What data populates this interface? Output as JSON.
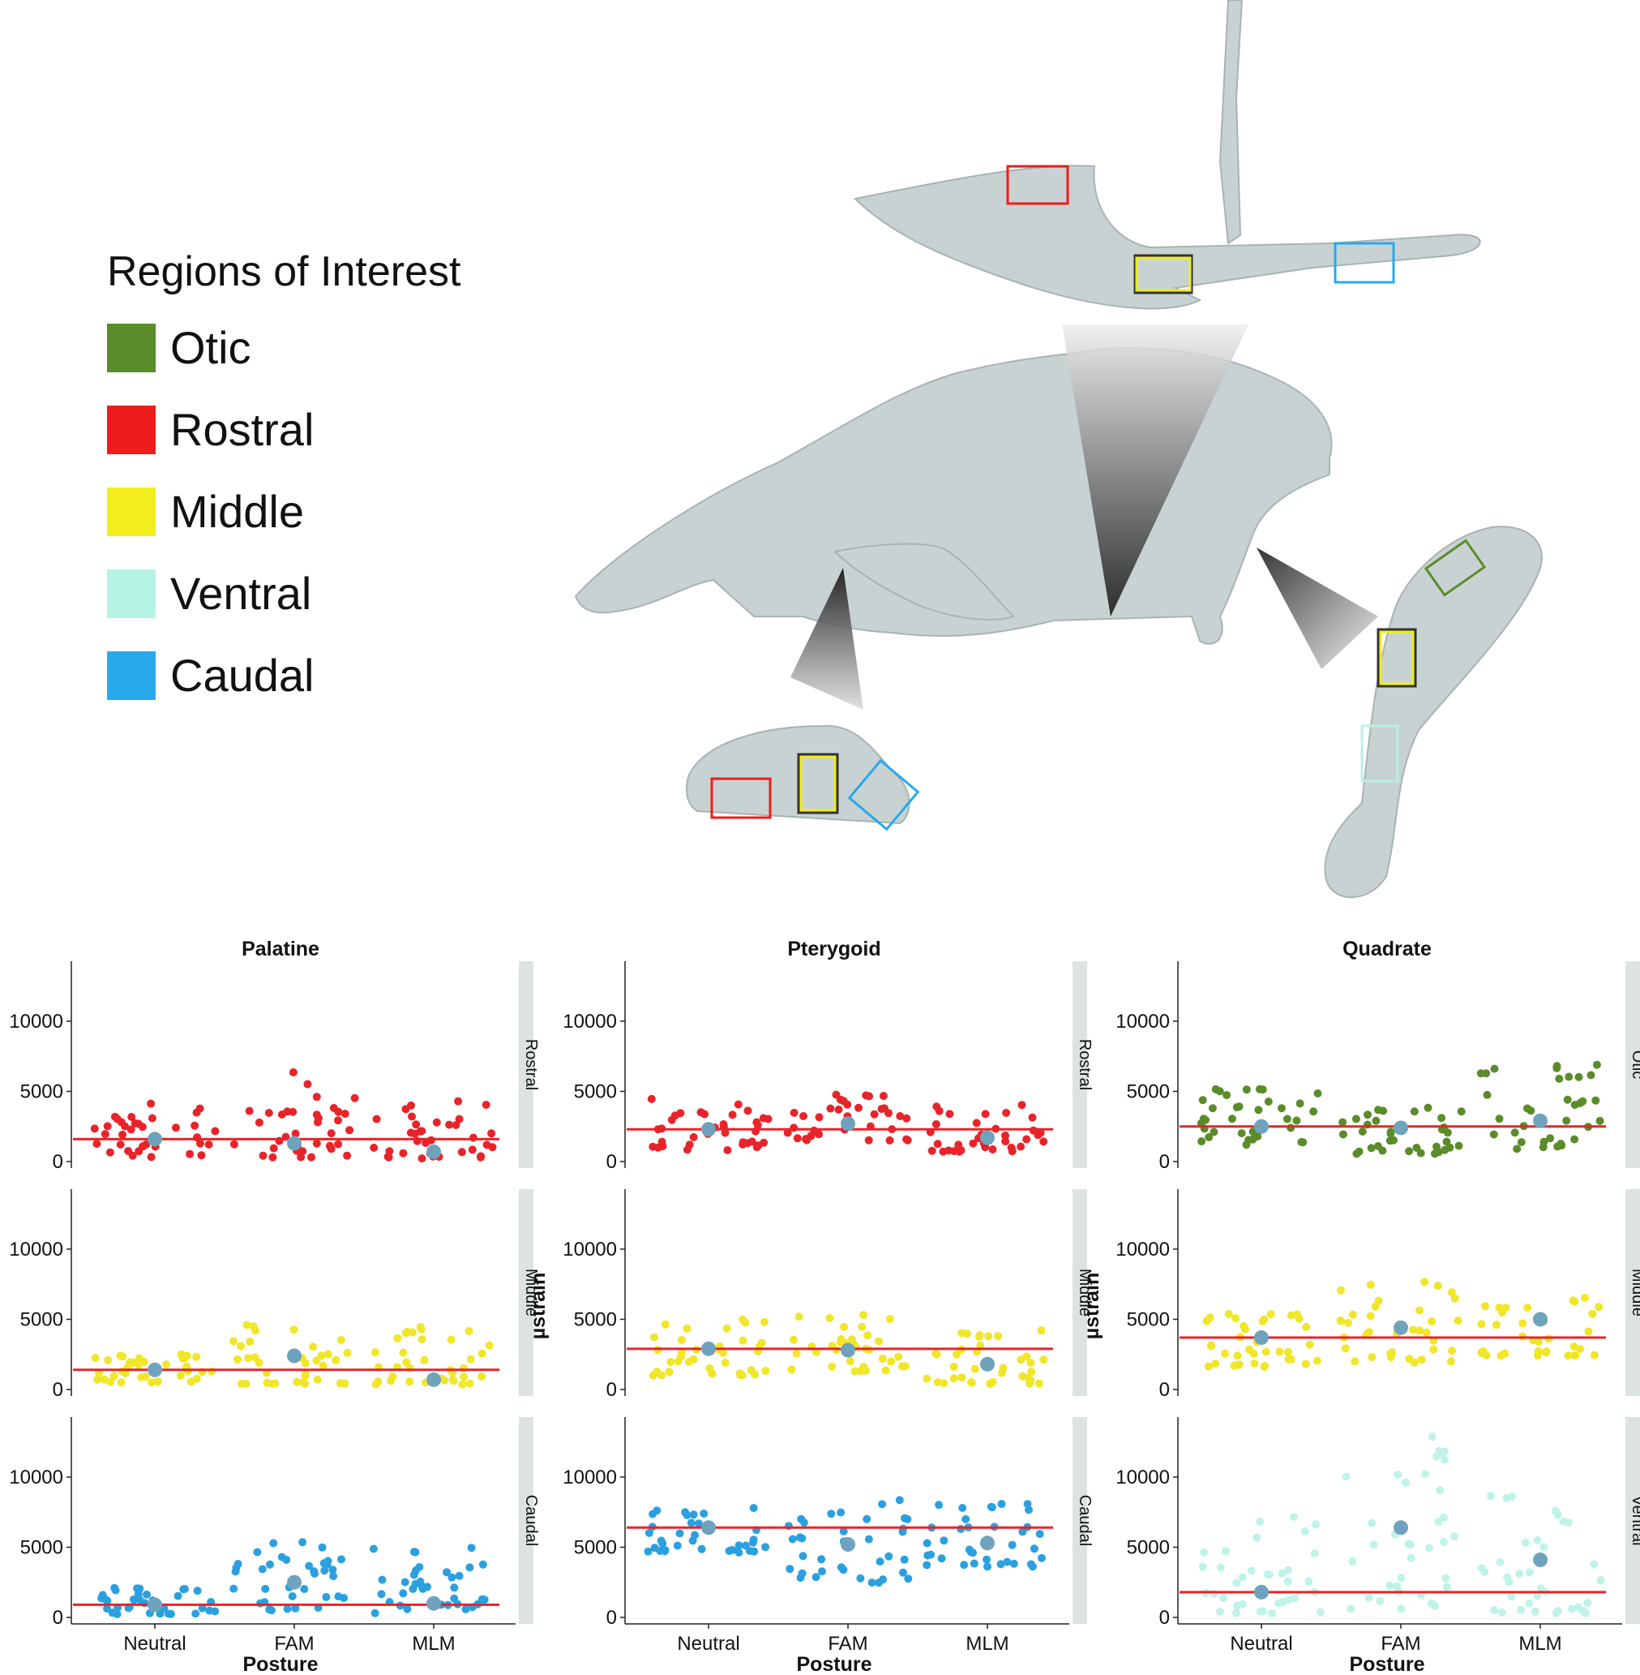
{
  "legend": {
    "title": "Regions of Interest",
    "items": [
      {
        "label": "Otic",
        "color": "#5b8c2a"
      },
      {
        "label": "Rostral",
        "color": "#ee1c1c"
      },
      {
        "label": "Middle",
        "color": "#f1ee1c"
      },
      {
        "label": "Ventral",
        "color": "#b6f2e4"
      },
      {
        "label": "Caudal",
        "color": "#27a9ec"
      }
    ]
  },
  "region_colors": {
    "Otic": "#5b8c2a",
    "Rostral": "#e8242a",
    "Middle": "#f0e62a",
    "Ventral": "#bff3e8",
    "Caudal": "#2ba0e0",
    "mean": "#6fa3bd",
    "line": "#e8242a"
  },
  "chart_data": {
    "type": "scatter",
    "xlabel": "Posture",
    "ylabel": "µstrain",
    "categories": [
      "Neutral",
      "FAM",
      "MLM"
    ],
    "ylim": [
      0,
      14000
    ],
    "yticks": [
      0,
      5000,
      10000
    ],
    "columns": [
      "Palatine",
      "Pterygoid",
      "Quadrate"
    ],
    "panels": [
      {
        "bone": "Palatine",
        "region": "Rostral",
        "strip": "Rostral",
        "color": "Rostral",
        "reference": 1600,
        "means": [
          1600,
          1300,
          700
        ],
        "spread": {
          "Neutral": [
            200,
            4300
          ],
          "FAM": [
            300,
            6400
          ],
          "MLM": [
            200,
            4500
          ]
        }
      },
      {
        "bone": "Pterygoid",
        "region": "Rostral",
        "strip": "Rostral",
        "color": "Rostral",
        "reference": 2300,
        "means": [
          2300,
          2700,
          1700
        ],
        "spread": {
          "Neutral": [
            800,
            4600
          ],
          "FAM": [
            1500,
            4800
          ],
          "MLM": [
            700,
            4500
          ]
        }
      },
      {
        "bone": "Quadrate",
        "region": "Otic",
        "strip": "Otic",
        "color": "Otic",
        "reference": 2500,
        "means": [
          2500,
          2400,
          2900
        ],
        "spread": {
          "Neutral": [
            1200,
            5400
          ],
          "FAM": [
            500,
            4200
          ],
          "MLM": [
            900,
            7000
          ]
        }
      },
      {
        "bone": "Palatine",
        "region": "Middle",
        "strip": "Middle",
        "color": "Middle",
        "reference": 1400,
        "means": [
          1400,
          2400,
          700
        ],
        "spread": {
          "Neutral": [
            500,
            2600
          ],
          "FAM": [
            400,
            5400
          ],
          "MLM": [
            300,
            4600
          ]
        }
      },
      {
        "bone": "Pterygoid",
        "region": "Middle",
        "strip": "Middle",
        "color": "Middle",
        "reference": 2900,
        "means": [
          2900,
          2800,
          1800
        ],
        "spread": {
          "Neutral": [
            1000,
            5000
          ],
          "FAM": [
            1300,
            5600
          ],
          "MLM": [
            400,
            4400
          ]
        }
      },
      {
        "bone": "Quadrate",
        "region": "Middle",
        "strip": "Middle",
        "color": "Middle",
        "reference": 3700,
        "means": [
          3700,
          4400,
          5000
        ],
        "spread": {
          "Neutral": [
            1600,
            5600
          ],
          "FAM": [
            1900,
            8200
          ],
          "MLM": [
            2400,
            7000
          ]
        }
      },
      {
        "bone": "Palatine",
        "region": "Caudal",
        "strip": "Caudal",
        "color": "Caudal",
        "reference": 900,
        "means": [
          900,
          2500,
          1000
        ],
        "spread": {
          "Neutral": [
            200,
            2100
          ],
          "FAM": [
            500,
            5400
          ],
          "MLM": [
            300,
            5000
          ]
        }
      },
      {
        "bone": "Pterygoid",
        "region": "Caudal",
        "strip": "Caudal",
        "color": "Caudal",
        "reference": 6400,
        "means": [
          6400,
          5200,
          5300
        ],
        "spread": {
          "Neutral": [
            4600,
            7900
          ],
          "FAM": [
            2400,
            8700
          ],
          "MLM": [
            3600,
            8300
          ]
        }
      },
      {
        "bone": "Quadrate",
        "region": "Ventral",
        "strip": "Ventral",
        "color": "Ventral",
        "reference": 1800,
        "means": [
          1800,
          6400,
          4100
        ],
        "spread": {
          "Neutral": [
            300,
            7400
          ],
          "FAM": [
            600,
            13400
          ],
          "MLM": [
            300,
            8800
          ]
        }
      }
    ]
  }
}
